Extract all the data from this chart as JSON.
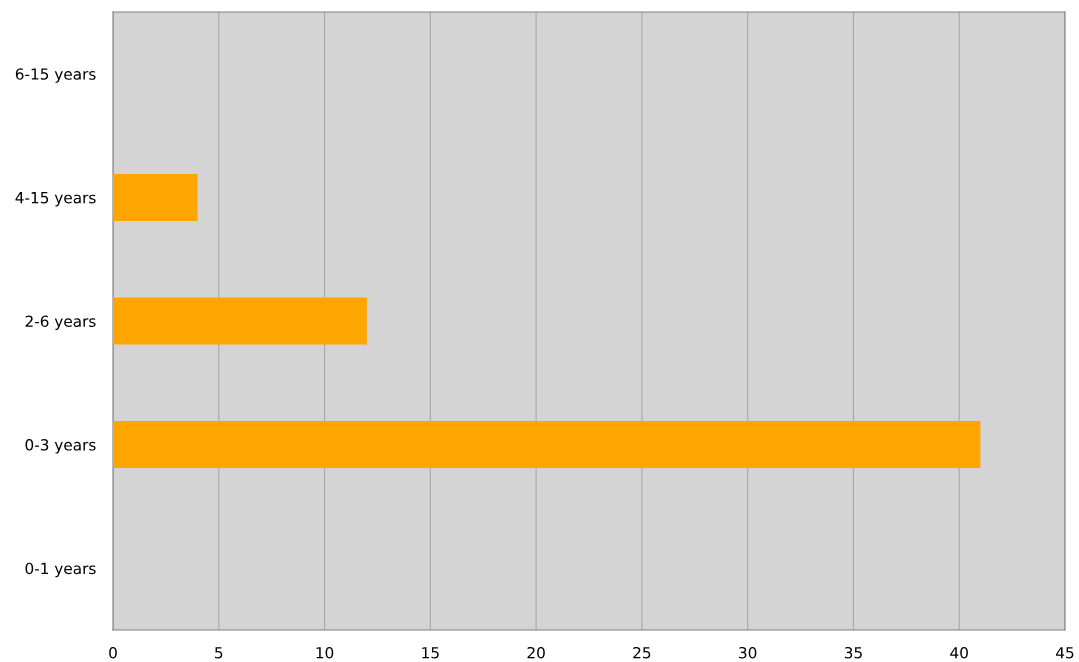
{
  "chart_data": {
    "type": "bar",
    "orientation": "horizontal",
    "categories": [
      "6-15 years",
      "4-15 years",
      "2-6 years",
      "0-3 years",
      "0-1 years"
    ],
    "values": [
      0,
      4,
      12,
      41,
      0
    ],
    "color": "#ffa500",
    "xlim": [
      0,
      45
    ],
    "xticks": [
      0,
      5,
      10,
      15,
      20,
      25,
      30,
      35,
      40,
      45
    ],
    "grid": "x",
    "legend": false
  }
}
